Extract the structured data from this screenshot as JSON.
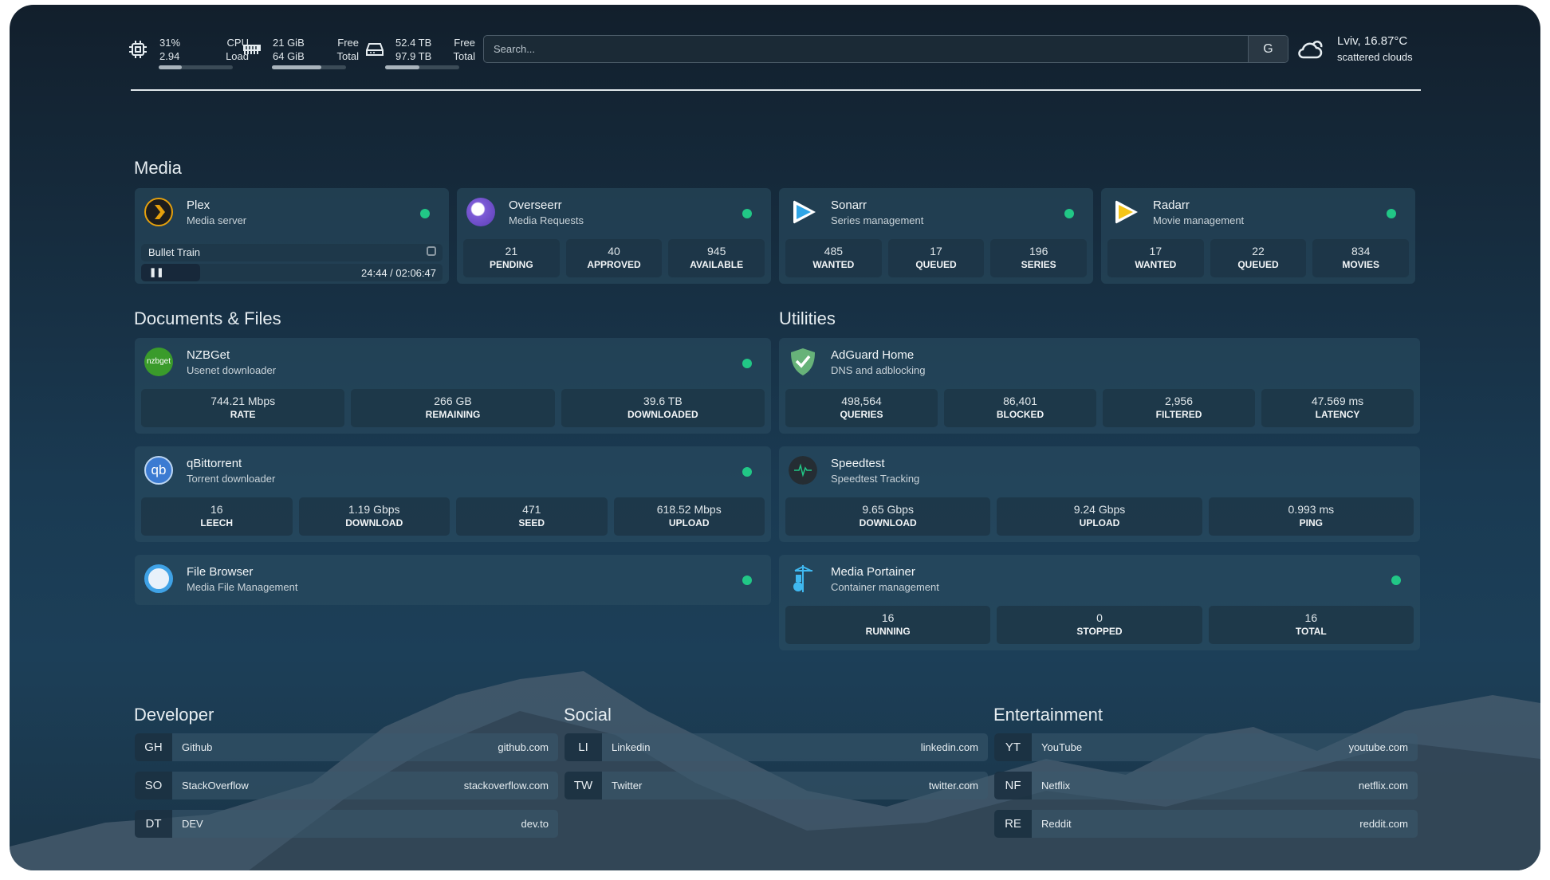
{
  "topbar": {
    "cpu": {
      "icon": "cpu-icon",
      "value1": "31%",
      "value2": "2.94",
      "label1": "CPU",
      "label2": "Load",
      "percent": 31
    },
    "memory": {
      "icon": "memory-icon",
      "value1": "21 GiB",
      "value2": "64 GiB",
      "label1": "Free",
      "label2": "Total",
      "percent": 67
    },
    "disk": {
      "icon": "disk-icon",
      "value1": "52.4 TB",
      "value2": "97.9 TB",
      "label1": "Free",
      "label2": "Total",
      "percent": 46
    },
    "search": {
      "placeholder": "Search...",
      "engine_button": "G"
    },
    "weather": {
      "icon": "cloud-icon",
      "location_temp": "Lviv, 16.87°C",
      "condition": "scattered clouds"
    }
  },
  "accent": {
    "status_online": "#21c786"
  },
  "sections": {
    "media": "Media",
    "documents": "Documents & Files",
    "utilities": "Utilities",
    "developer": "Developer",
    "social": "Social",
    "entertainment": "Entertainment"
  },
  "plex": {
    "name": "Plex",
    "desc": "Media server",
    "now_playing": "Bullet Train",
    "time": "24:44 / 02:06:47",
    "progress_percent": 19.5
  },
  "services": {
    "overseerr": {
      "name": "Overseerr",
      "desc": "Media Requests",
      "stats": [
        {
          "v": "21",
          "l": "PENDING"
        },
        {
          "v": "40",
          "l": "APPROVED"
        },
        {
          "v": "945",
          "l": "AVAILABLE"
        }
      ]
    },
    "sonarr": {
      "name": "Sonarr",
      "desc": "Series management",
      "stats": [
        {
          "v": "485",
          "l": "WANTED"
        },
        {
          "v": "17",
          "l": "QUEUED"
        },
        {
          "v": "196",
          "l": "SERIES"
        }
      ]
    },
    "radarr": {
      "name": "Radarr",
      "desc": "Movie management",
      "stats": [
        {
          "v": "17",
          "l": "WANTED"
        },
        {
          "v": "22",
          "l": "QUEUED"
        },
        {
          "v": "834",
          "l": "MOVIES"
        }
      ]
    },
    "nzbget": {
      "name": "NZBGet",
      "desc": "Usenet downloader",
      "logo_text": "nzbget",
      "stats": [
        {
          "v": "744.21 Mbps",
          "l": "RATE"
        },
        {
          "v": "266 GB",
          "l": "REMAINING"
        },
        {
          "v": "39.6 TB",
          "l": "DOWNLOADED"
        }
      ]
    },
    "qbittorrent": {
      "name": "qBittorrent",
      "desc": "Torrent downloader",
      "logo_text": "qb",
      "stats": [
        {
          "v": "16",
          "l": "LEECH"
        },
        {
          "v": "1.19 Gbps",
          "l": "DOWNLOAD"
        },
        {
          "v": "471",
          "l": "SEED"
        },
        {
          "v": "618.52 Mbps",
          "l": "UPLOAD"
        }
      ]
    },
    "filebrowser": {
      "name": "File Browser",
      "desc": "Media File Management",
      "stats": []
    },
    "adguard": {
      "name": "AdGuard Home",
      "desc": "DNS and adblocking",
      "stats": [
        {
          "v": "498,564",
          "l": "QUERIES"
        },
        {
          "v": "86,401",
          "l": "BLOCKED"
        },
        {
          "v": "2,956",
          "l": "FILTERED"
        },
        {
          "v": "47.569 ms",
          "l": "LATENCY"
        }
      ]
    },
    "speedtest": {
      "name": "Speedtest",
      "desc": "Speedtest Tracking",
      "stats": [
        {
          "v": "9.65 Gbps",
          "l": "DOWNLOAD"
        },
        {
          "v": "9.24 Gbps",
          "l": "UPLOAD"
        },
        {
          "v": "0.993 ms",
          "l": "PING"
        }
      ]
    },
    "portainer": {
      "name": "Media Portainer",
      "desc": "Container management",
      "stats": [
        {
          "v": "16",
          "l": "RUNNING"
        },
        {
          "v": "0",
          "l": "STOPPED"
        },
        {
          "v": "16",
          "l": "TOTAL"
        }
      ]
    }
  },
  "bookmarks": {
    "developer": [
      {
        "abbr": "GH",
        "name": "Github",
        "url": "github.com"
      },
      {
        "abbr": "SO",
        "name": "StackOverflow",
        "url": "stackoverflow.com"
      },
      {
        "abbr": "DT",
        "name": "DEV",
        "url": "dev.to"
      }
    ],
    "social": [
      {
        "abbr": "LI",
        "name": "Linkedin",
        "url": "linkedin.com"
      },
      {
        "abbr": "TW",
        "name": "Twitter",
        "url": "twitter.com"
      }
    ],
    "entertainment": [
      {
        "abbr": "YT",
        "name": "YouTube",
        "url": "youtube.com"
      },
      {
        "abbr": "NF",
        "name": "Netflix",
        "url": "netflix.com"
      },
      {
        "abbr": "RE",
        "name": "Reddit",
        "url": "reddit.com"
      }
    ]
  }
}
